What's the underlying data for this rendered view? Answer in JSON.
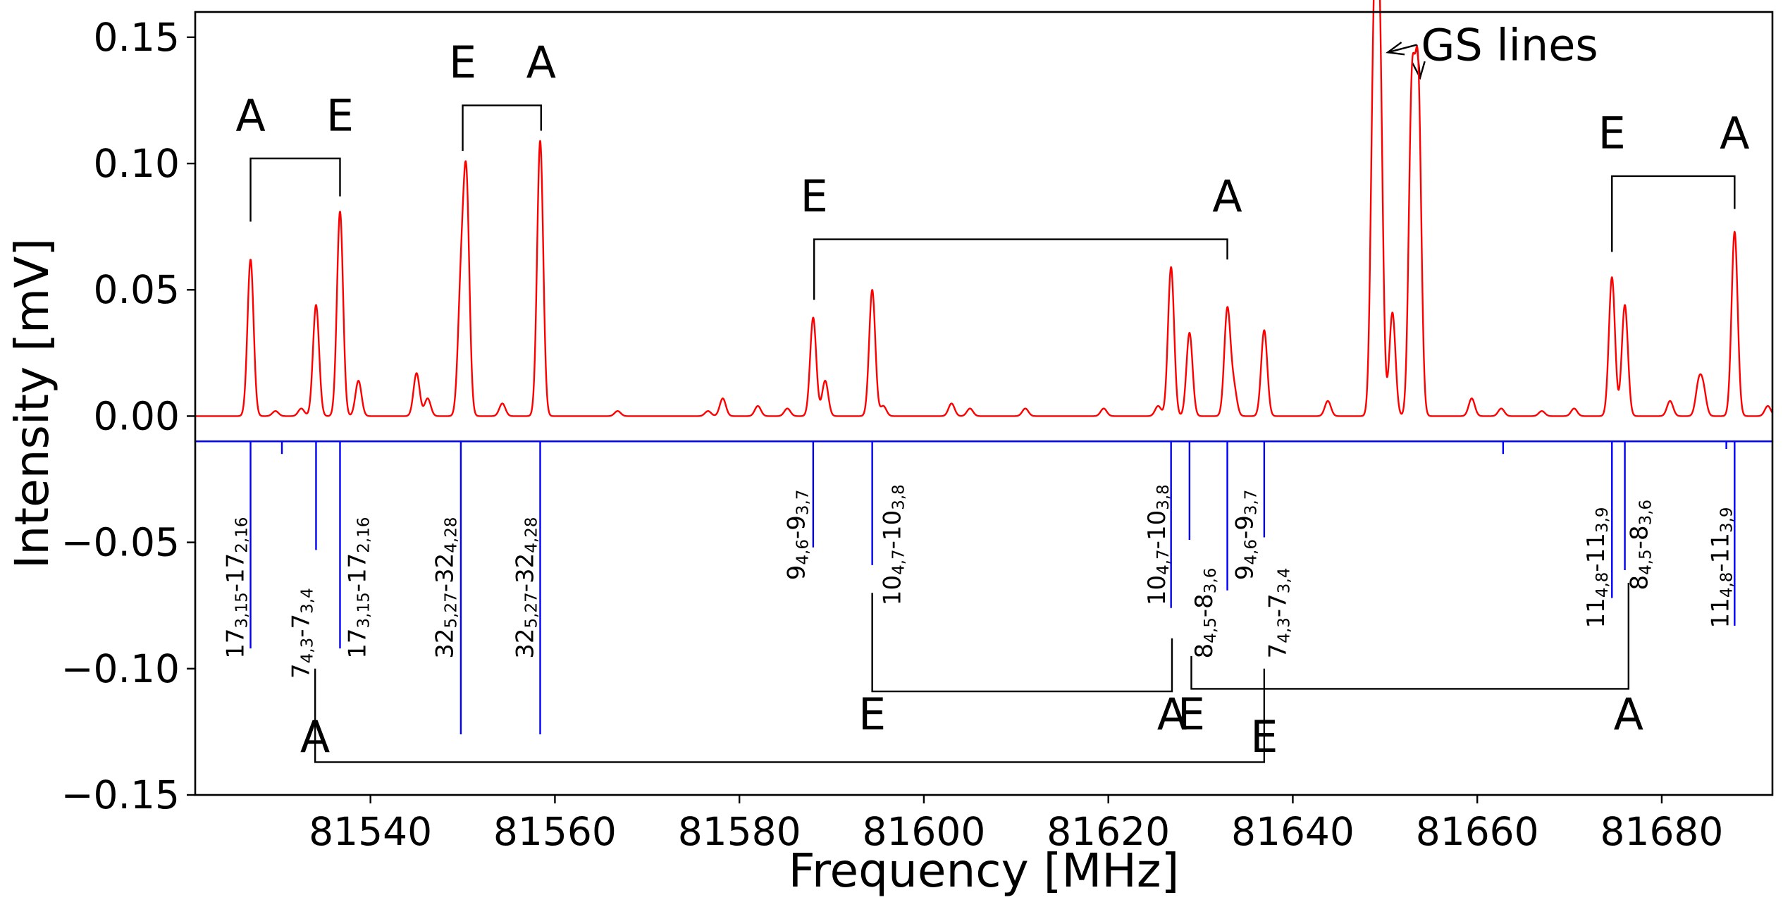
{
  "chart_data": {
    "type": "line",
    "xlabel": "Frequency [MHz]",
    "ylabel": "Intensity [mV]",
    "xlim": [
      81521,
      81692
    ],
    "ylim": [
      -0.15,
      0.16
    ],
    "grid": false,
    "legend": "none",
    "x_ticks": [
      {
        "value": 81540,
        "label": "81540"
      },
      {
        "value": 81560,
        "label": "81560"
      },
      {
        "value": 81580,
        "label": "81580"
      },
      {
        "value": 81600,
        "label": "81600"
      },
      {
        "value": 81620,
        "label": "81620"
      },
      {
        "value": 81640,
        "label": "81640"
      },
      {
        "value": 81660,
        "label": "81660"
      },
      {
        "value": 81680,
        "label": "81680"
      }
    ],
    "y_ticks": [
      {
        "value": 0.15,
        "label": "0.15"
      },
      {
        "value": 0.1,
        "label": "0.10"
      },
      {
        "value": 0.05,
        "label": "0.05"
      },
      {
        "value": 0.0,
        "label": "0.00"
      },
      {
        "value": -0.05,
        "label": "−0.05"
      },
      {
        "value": -0.1,
        "label": "−0.10"
      },
      {
        "value": -0.15,
        "label": "−0.15"
      }
    ],
    "colors": {
      "measured": "#ff0000",
      "predicted": "#0000ff",
      "annotation": "#000000"
    },
    "measured_peaks": [
      {
        "x": 81527.0,
        "y": 0.062
      },
      {
        "x": 81529.7,
        "y": 0.002
      },
      {
        "x": 81532.5,
        "y": 0.003
      },
      {
        "x": 81534.1,
        "y": 0.044
      },
      {
        "x": 81536.7,
        "y": 0.081
      },
      {
        "x": 81538.7,
        "y": 0.014
      },
      {
        "x": 81545.0,
        "y": 0.017
      },
      {
        "x": 81546.2,
        "y": 0.007
      },
      {
        "x": 81549.8,
        "y": 0.047
      },
      {
        "x": 81550.4,
        "y": 0.09
      },
      {
        "x": 81554.3,
        "y": 0.005
      },
      {
        "x": 81558.4,
        "y": 0.109
      },
      {
        "x": 81566.8,
        "y": 0.002
      },
      {
        "x": 81576.6,
        "y": 0.002
      },
      {
        "x": 81578.2,
        "y": 0.007
      },
      {
        "x": 81582.0,
        "y": 0.004
      },
      {
        "x": 81585.2,
        "y": 0.003
      },
      {
        "x": 81588.0,
        "y": 0.039
      },
      {
        "x": 81589.3,
        "y": 0.014
      },
      {
        "x": 81594.4,
        "y": 0.05
      },
      {
        "x": 81595.6,
        "y": 0.004
      },
      {
        "x": 81603.0,
        "y": 0.005
      },
      {
        "x": 81605.0,
        "y": 0.003
      },
      {
        "x": 81611.0,
        "y": 0.003
      },
      {
        "x": 81619.5,
        "y": 0.003
      },
      {
        "x": 81625.4,
        "y": 0.004
      },
      {
        "x": 81626.8,
        "y": 0.059
      },
      {
        "x": 81628.8,
        "y": 0.033
      },
      {
        "x": 81632.9,
        "y": 0.042
      },
      {
        "x": 81633.6,
        "y": 0.011
      },
      {
        "x": 81636.9,
        "y": 0.034
      },
      {
        "x": 81643.8,
        "y": 0.006
      },
      {
        "x": 81648.8,
        "y": 0.142
      },
      {
        "x": 81649.4,
        "y": 0.146
      },
      {
        "x": 81650.8,
        "y": 0.041
      },
      {
        "x": 81652.9,
        "y": 0.124
      },
      {
        "x": 81653.6,
        "y": 0.128
      },
      {
        "x": 81659.4,
        "y": 0.007
      },
      {
        "x": 81662.6,
        "y": 0.003
      },
      {
        "x": 81667.0,
        "y": 0.002
      },
      {
        "x": 81670.5,
        "y": 0.003
      },
      {
        "x": 81674.6,
        "y": 0.055
      },
      {
        "x": 81676.0,
        "y": 0.044
      },
      {
        "x": 81680.9,
        "y": 0.006
      },
      {
        "x": 81684.0,
        "y": 0.012
      },
      {
        "x": 81684.5,
        "y": 0.01
      },
      {
        "x": 81687.9,
        "y": 0.073
      },
      {
        "x": 81691.5,
        "y": 0.004
      }
    ],
    "predicted_baseline": -0.01,
    "predicted_lines": [
      {
        "x": 81527.0,
        "y": -0.092
      },
      {
        "x": 81530.4,
        "y": -0.015
      },
      {
        "x": 81534.1,
        "y": -0.053
      },
      {
        "x": 81536.7,
        "y": -0.092
      },
      {
        "x": 81549.8,
        "y": -0.126
      },
      {
        "x": 81558.4,
        "y": -0.126
      },
      {
        "x": 81588.0,
        "y": -0.052
      },
      {
        "x": 81594.4,
        "y": -0.059
      },
      {
        "x": 81626.8,
        "y": -0.076
      },
      {
        "x": 81628.8,
        "y": -0.049
      },
      {
        "x": 81632.9,
        "y": -0.069
      },
      {
        "x": 81636.9,
        "y": -0.048
      },
      {
        "x": 81662.8,
        "y": -0.015
      },
      {
        "x": 81674.6,
        "y": -0.072
      },
      {
        "x": 81676.0,
        "y": -0.061
      },
      {
        "x": 81687.0,
        "y": -0.013
      },
      {
        "x": 81687.9,
        "y": -0.083
      }
    ],
    "transition_labels": [
      {
        "x": 81525.4,
        "y": -0.068,
        "main1": "17",
        "sub1": "3,15",
        "main2": "17",
        "sub2": "2,16"
      },
      {
        "x": 81532.5,
        "y": -0.086,
        "main1": "7",
        "sub1": "4,3",
        "main2": "7",
        "sub2": "3,4"
      },
      {
        "x": 81538.6,
        "y": -0.068,
        "main1": "17",
        "sub1": "3,15",
        "main2": "17",
        "sub2": "2,16"
      },
      {
        "x": 81548.1,
        "y": -0.068,
        "main1": "32",
        "sub1": "5,27",
        "main2": "32",
        "sub2": "4,28"
      },
      {
        "x": 81556.8,
        "y": -0.068,
        "main1": "32",
        "sub1": "5,27",
        "main2": "32",
        "sub2": "4,28"
      },
      {
        "x": 81586.2,
        "y": -0.047,
        "main1": "9",
        "sub1": "4,6",
        "main2": "9",
        "sub2": "3,7"
      },
      {
        "x": 81596.6,
        "y": -0.051,
        "main1": "10",
        "sub1": "4,7",
        "main2": "10",
        "sub2": "3,8"
      },
      {
        "x": 81625.3,
        "y": -0.051,
        "main1": "10",
        "sub1": "4,7",
        "main2": "10",
        "sub2": "3,8"
      },
      {
        "x": 81630.4,
        "y": -0.078,
        "main1": "8",
        "sub1": "4,5",
        "main2": "8",
        "sub2": "3,6"
      },
      {
        "x": 81634.8,
        "y": -0.047,
        "main1": "9",
        "sub1": "4,6",
        "main2": "9",
        "sub2": "3,7"
      },
      {
        "x": 81638.4,
        "y": -0.078,
        "main1": "7",
        "sub1": "4,3",
        "main2": "7",
        "sub2": "3,4"
      },
      {
        "x": 81672.9,
        "y": -0.06,
        "main1": "11",
        "sub1": "4,8",
        "main2": "11",
        "sub2": "3,9"
      },
      {
        "x": 81677.6,
        "y": -0.051,
        "main1": "8",
        "sub1": "4,5",
        "main2": "8",
        "sub2": "3,6"
      },
      {
        "x": 81686.4,
        "y": -0.06,
        "main1": "11",
        "sub1": "4,8",
        "main2": "11",
        "sub2": "3,9"
      }
    ],
    "upper_pairs": [
      {
        "x1": 81527.0,
        "x2": 81536.7,
        "y_bar": 0.102,
        "y1_end": 0.077,
        "y2_end": 0.087,
        "label1": "A",
        "label2": "E",
        "label_y": 0.113
      },
      {
        "x1": 81550.0,
        "x2": 81558.5,
        "y_bar": 0.123,
        "y1_end": 0.105,
        "y2_end": 0.113,
        "label1": "E",
        "label2": "A",
        "label_y": 0.134
      },
      {
        "x1": 81588.1,
        "x2": 81632.9,
        "y_bar": 0.07,
        "y1_end": 0.046,
        "y2_end": 0.062,
        "label1": "E",
        "label2": "A",
        "label_y": 0.081
      },
      {
        "x1": 81674.6,
        "x2": 81687.9,
        "y_bar": 0.095,
        "y1_end": 0.065,
        "y2_end": 0.082,
        "label1": "E",
        "label2": "A",
        "label_y": 0.106
      }
    ],
    "lower_pairs": [
      {
        "x1": 81594.4,
        "x2": 81626.9,
        "y_bar": -0.109,
        "y1_end": -0.07,
        "y2_end": -0.088,
        "label1": "E",
        "label2": "A",
        "label_y": -0.124
      },
      {
        "x1": 81629.0,
        "x2": 81676.4,
        "y_bar": -0.108,
        "y1_end": -0.095,
        "y2_end": -0.066,
        "label1": "E",
        "label2": "A",
        "label_y": -0.124
      },
      {
        "x1": 81534.0,
        "x2": 81636.9,
        "y_bar": -0.137,
        "y1_end": -0.1,
        "y2_end": -0.1,
        "label1": "A",
        "label2": "E",
        "label_y": -0.133
      }
    ],
    "annotation": {
      "text": "GS lines",
      "text_x": 81653.9,
      "text_y": 0.147,
      "targets": [
        {
          "x": 81650.3,
          "y": 0.144
        },
        {
          "x": 81653.8,
          "y": 0.134
        }
      ]
    }
  }
}
